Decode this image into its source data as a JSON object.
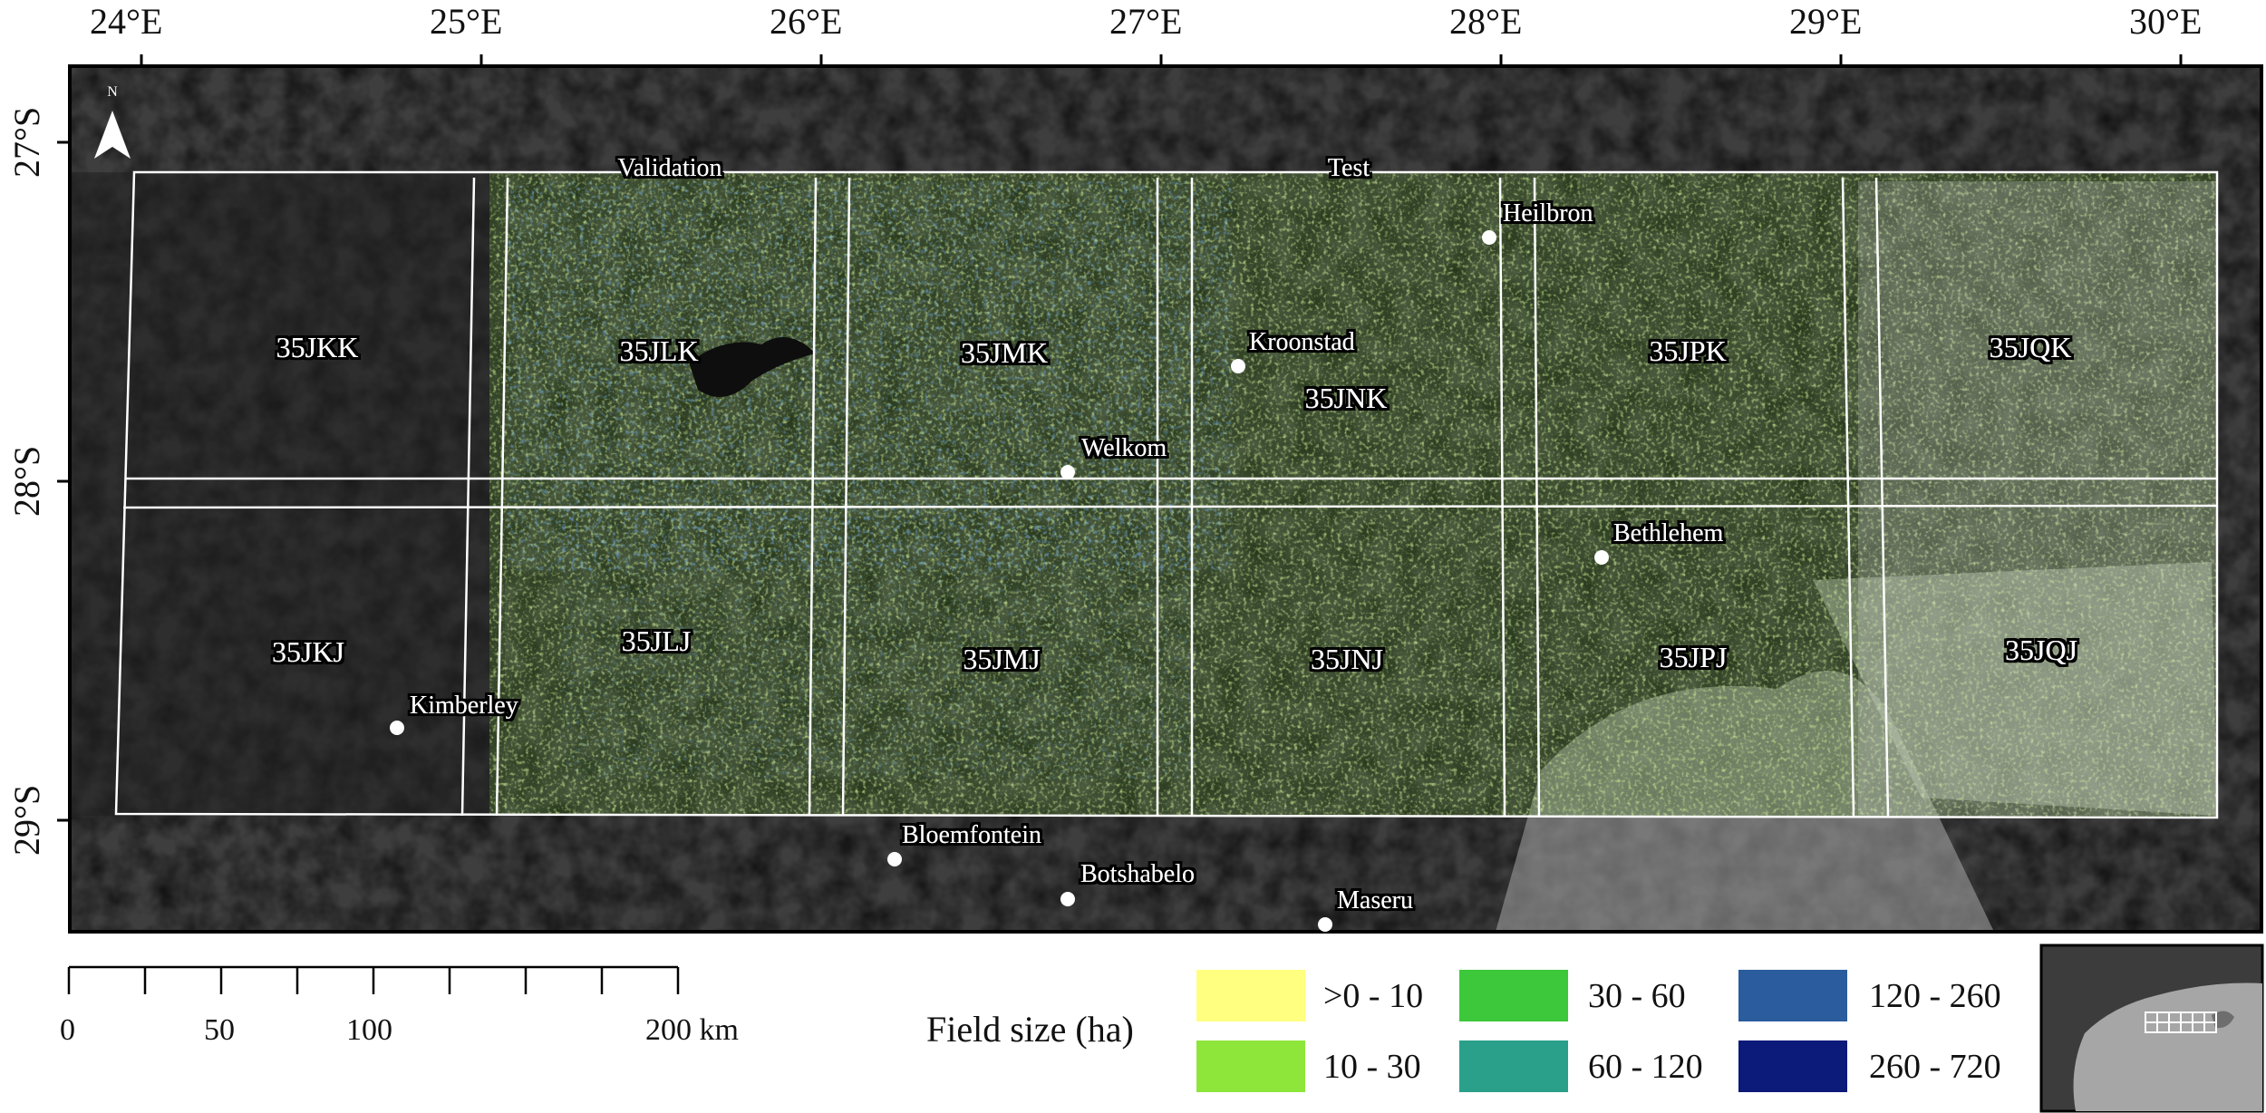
{
  "longitude_labels": [
    "24°E",
    "25°E",
    "26°E",
    "27°E",
    "28°E",
    "29°E",
    "30°E"
  ],
  "latitude_labels": [
    "27°S",
    "28°S",
    "29°S"
  ],
  "north_arrow_label": "N",
  "split_labels": {
    "validation": "Validation",
    "test": "Test"
  },
  "tiles": [
    "35JKK",
    "35JLK",
    "35JMK",
    "35JNK",
    "35JPK",
    "35JQK",
    "35JKJ",
    "35JLJ",
    "35JMJ",
    "35JNJ",
    "35JPJ",
    "35JQJ"
  ],
  "cities": [
    "Heilbron",
    "Kroonstad",
    "Welkom",
    "Bethlehem",
    "Kimberley",
    "Bloemfontein",
    "Botshabelo",
    "Maseru"
  ],
  "scale_bar": {
    "labels": [
      "0",
      "50",
      "100",
      "200 km"
    ]
  },
  "legend": {
    "title": "Field size (ha)",
    "classes": [
      {
        "label": ">0 - 10",
        "color": "#ffff80"
      },
      {
        "label": "10 - 30",
        "color": "#8ee63a"
      },
      {
        "label": "30 - 60",
        "color": "#3cc83a"
      },
      {
        "label": "60 - 120",
        "color": "#2aa08a"
      },
      {
        "label": "120 - 260",
        "color": "#2a5c9e"
      },
      {
        "label": "260 - 720",
        "color": "#0c1a7a"
      }
    ]
  }
}
